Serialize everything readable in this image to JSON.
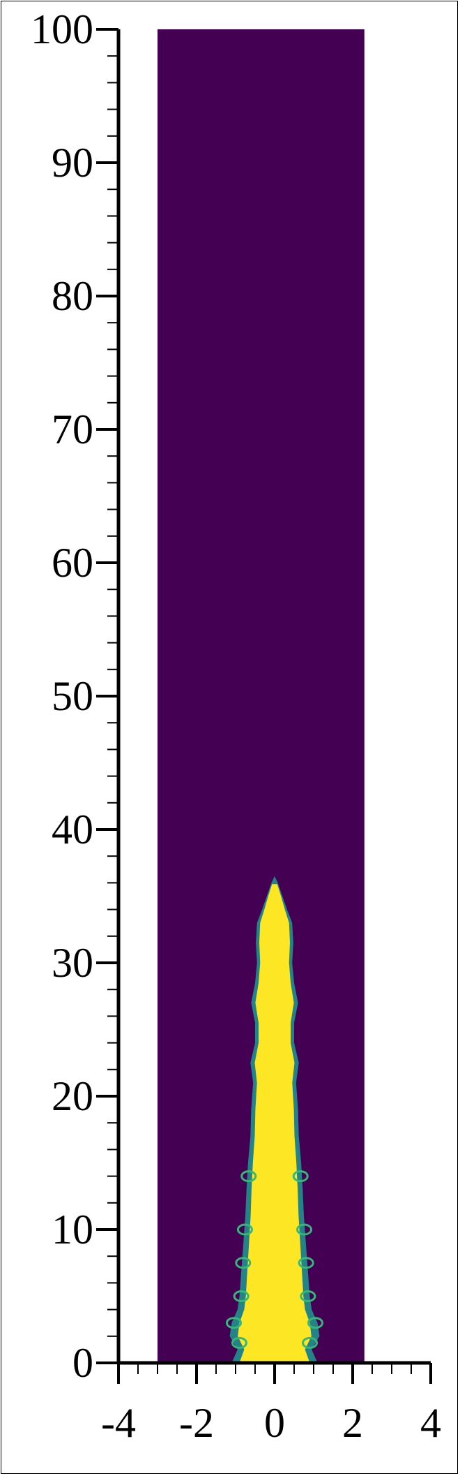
{
  "chart_data": {
    "type": "heatmap",
    "title": "",
    "xlabel": "",
    "ylabel": "",
    "xlim": [
      -4,
      4
    ],
    "ylim": [
      0,
      100
    ],
    "x_ticks": [
      "-4",
      "-2",
      "0",
      "2",
      "4"
    ],
    "y_ticks": [
      "0",
      "10",
      "20",
      "30",
      "40",
      "50",
      "60",
      "70",
      "80",
      "90",
      "100"
    ],
    "domain_x": [
      -3,
      2.3
    ],
    "domain_y": [
      0,
      100
    ],
    "colormap": "viridis",
    "background_color": "#440154",
    "plume_color": "#fde725",
    "edge_color": "#21918c",
    "plume_tip_height": 36.5,
    "plume_profile": [
      [
        0,
        1.1
      ],
      [
        1,
        0.95
      ],
      [
        2,
        1.15
      ],
      [
        3,
        1.1
      ],
      [
        4,
        0.95
      ],
      [
        5,
        0.9
      ],
      [
        7,
        0.85
      ],
      [
        9,
        0.8
      ],
      [
        11,
        0.75
      ],
      [
        13,
        0.72
      ],
      [
        15,
        0.68
      ],
      [
        17,
        0.62
      ],
      [
        19,
        0.6
      ],
      [
        21,
        0.55
      ],
      [
        22.5,
        0.62
      ],
      [
        24,
        0.5
      ],
      [
        25.5,
        0.5
      ],
      [
        27,
        0.6
      ],
      [
        28.5,
        0.5
      ],
      [
        30,
        0.45
      ],
      [
        31.5,
        0.48
      ],
      [
        33,
        0.45
      ],
      [
        34,
        0.32
      ],
      [
        35,
        0.2
      ],
      [
        36,
        0.08
      ],
      [
        36.5,
        0
      ]
    ]
  }
}
